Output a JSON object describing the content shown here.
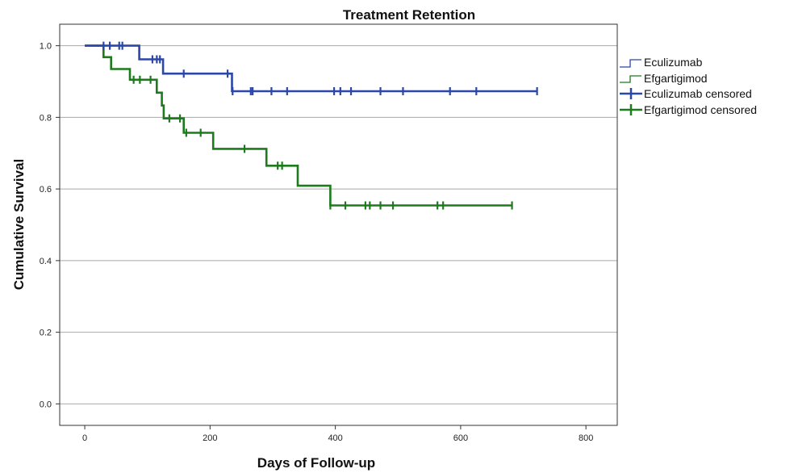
{
  "chart_data": {
    "type": "line",
    "subtype": "kaplan-meier step",
    "title": "Treatment Retention",
    "xlabel": "Days of Follow-up",
    "ylabel": "Cumulative Survival",
    "xlim": [
      -40,
      850
    ],
    "ylim": [
      -0.06,
      1.06
    ],
    "x_ticks": [
      0,
      200,
      400,
      600,
      800
    ],
    "y_ticks": [
      0.0,
      0.2,
      0.4,
      0.6,
      0.8,
      1.0
    ],
    "x_tick_labels": [
      "0",
      "200",
      "400",
      "600",
      "800"
    ],
    "y_tick_labels": [
      "0.0",
      "0.2",
      "0.4",
      "0.6",
      "0.8",
      "1.0"
    ],
    "grid": "horizontal",
    "legend_position": "right",
    "legend": [
      "Eculizumab",
      "Efgartigimod",
      "Eculizumab censored",
      "Efgartigimod censored"
    ],
    "series": [
      {
        "name": "Eculizumab",
        "color": "#2b47a8",
        "step_points": [
          [
            0,
            1.0
          ],
          [
            87,
            1.0
          ],
          [
            87,
            0.962
          ],
          [
            125,
            0.962
          ],
          [
            125,
            0.922
          ],
          [
            235,
            0.922
          ],
          [
            235,
            0.873
          ],
          [
            722,
            0.873
          ]
        ],
        "censored": [
          [
            30,
            1.0
          ],
          [
            40,
            1.0
          ],
          [
            55,
            1.0
          ],
          [
            60,
            1.0
          ],
          [
            108,
            0.962
          ],
          [
            115,
            0.962
          ],
          [
            120,
            0.962
          ],
          [
            158,
            0.922
          ],
          [
            228,
            0.922
          ],
          [
            236,
            0.873
          ],
          [
            265,
            0.873
          ],
          [
            268,
            0.873
          ],
          [
            298,
            0.873
          ],
          [
            323,
            0.873
          ],
          [
            398,
            0.873
          ],
          [
            408,
            0.873
          ],
          [
            425,
            0.873
          ],
          [
            472,
            0.873
          ],
          [
            508,
            0.873
          ],
          [
            583,
            0.873
          ],
          [
            625,
            0.873
          ],
          [
            722,
            0.873
          ]
        ]
      },
      {
        "name": "Efgartigimod",
        "color": "#1d7a1d",
        "step_points": [
          [
            0,
            1.0
          ],
          [
            30,
            1.0
          ],
          [
            30,
            0.968
          ],
          [
            42,
            0.968
          ],
          [
            42,
            0.935
          ],
          [
            72,
            0.935
          ],
          [
            72,
            0.905
          ],
          [
            115,
            0.905
          ],
          [
            115,
            0.869
          ],
          [
            123,
            0.869
          ],
          [
            123,
            0.833
          ],
          [
            126,
            0.833
          ],
          [
            126,
            0.797
          ],
          [
            158,
            0.797
          ],
          [
            158,
            0.757
          ],
          [
            205,
            0.757
          ],
          [
            205,
            0.712
          ],
          [
            290,
            0.712
          ],
          [
            290,
            0.665
          ],
          [
            340,
            0.665
          ],
          [
            340,
            0.609
          ],
          [
            392,
            0.609
          ],
          [
            392,
            0.554
          ],
          [
            682,
            0.554
          ]
        ],
        "censored": [
          [
            78,
            0.905
          ],
          [
            88,
            0.905
          ],
          [
            105,
            0.905
          ],
          [
            135,
            0.797
          ],
          [
            152,
            0.797
          ],
          [
            162,
            0.757
          ],
          [
            185,
            0.757
          ],
          [
            255,
            0.712
          ],
          [
            308,
            0.665
          ],
          [
            315,
            0.665
          ],
          [
            392,
            0.554
          ],
          [
            416,
            0.554
          ],
          [
            448,
            0.554
          ],
          [
            455,
            0.554
          ],
          [
            472,
            0.554
          ],
          [
            492,
            0.554
          ],
          [
            563,
            0.554
          ],
          [
            572,
            0.554
          ],
          [
            682,
            0.554
          ]
        ]
      }
    ]
  }
}
